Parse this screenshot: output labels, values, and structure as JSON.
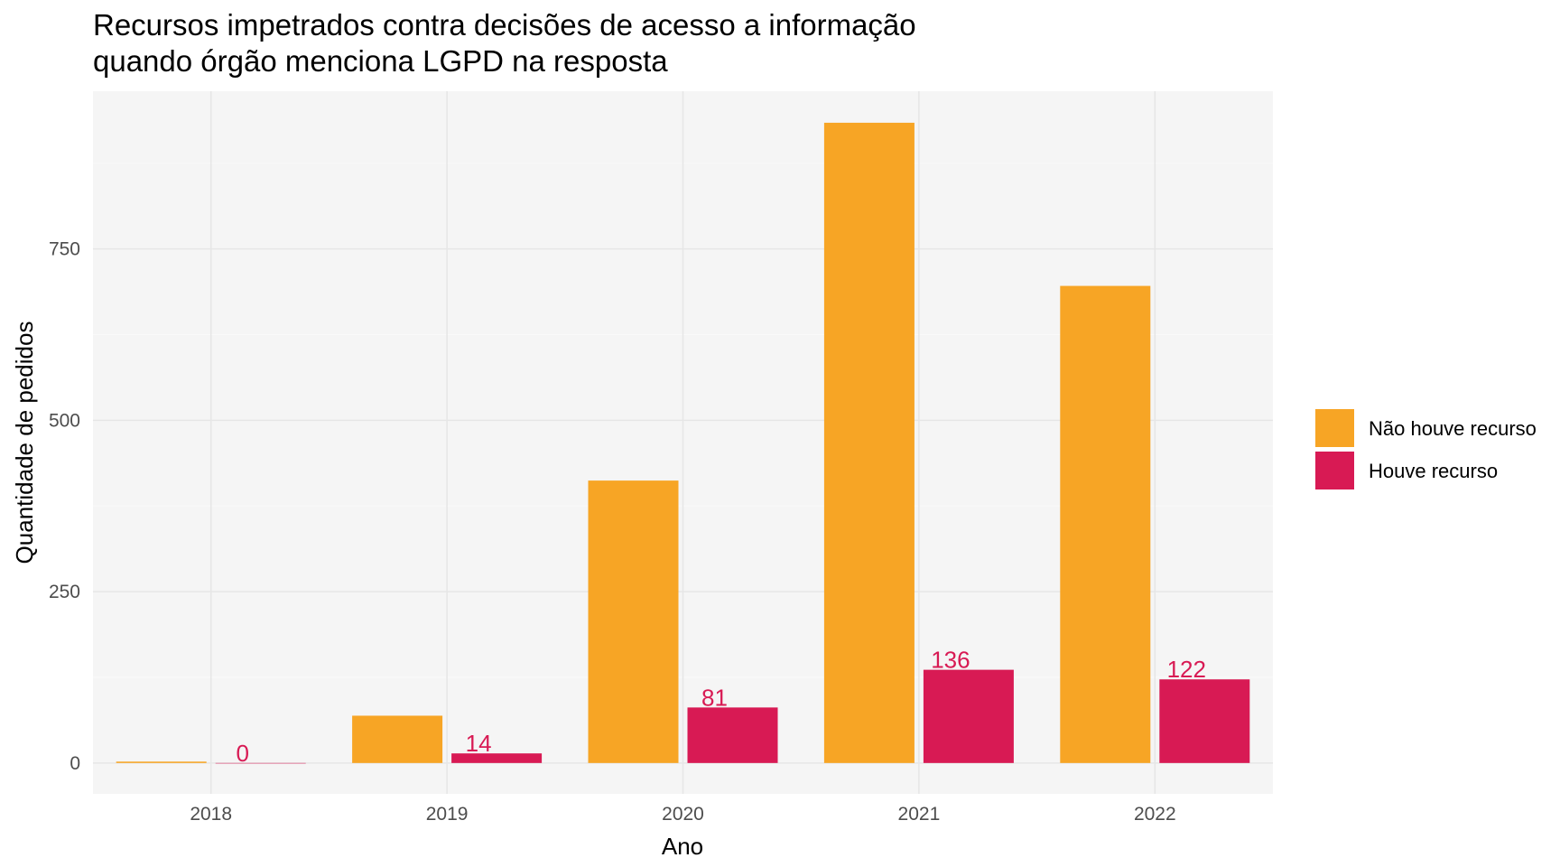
{
  "chart_data": {
    "type": "bar",
    "title": [
      "Recursos impetrados contra decisões de acesso a informação",
      "quando órgão menciona LGPD na resposta"
    ],
    "xlabel": "Ano",
    "ylabel": "Quantidade de pedidos",
    "categories": [
      "2018",
      "2019",
      "2020",
      "2021",
      "2022"
    ],
    "ylim": [
      -45,
      980
    ],
    "yticks": [
      0,
      250,
      500,
      750
    ],
    "grid": true,
    "legend_position": "right",
    "series": [
      {
        "name": "Não houve recurso",
        "color": "#F7A525",
        "values": [
          2,
          69,
          412,
          934,
          696
        ],
        "show_labels": false
      },
      {
        "name": "Houve recurso",
        "color": "#D81A54",
        "values": [
          0,
          14,
          81,
          136,
          122
        ],
        "show_labels": true
      }
    ]
  }
}
